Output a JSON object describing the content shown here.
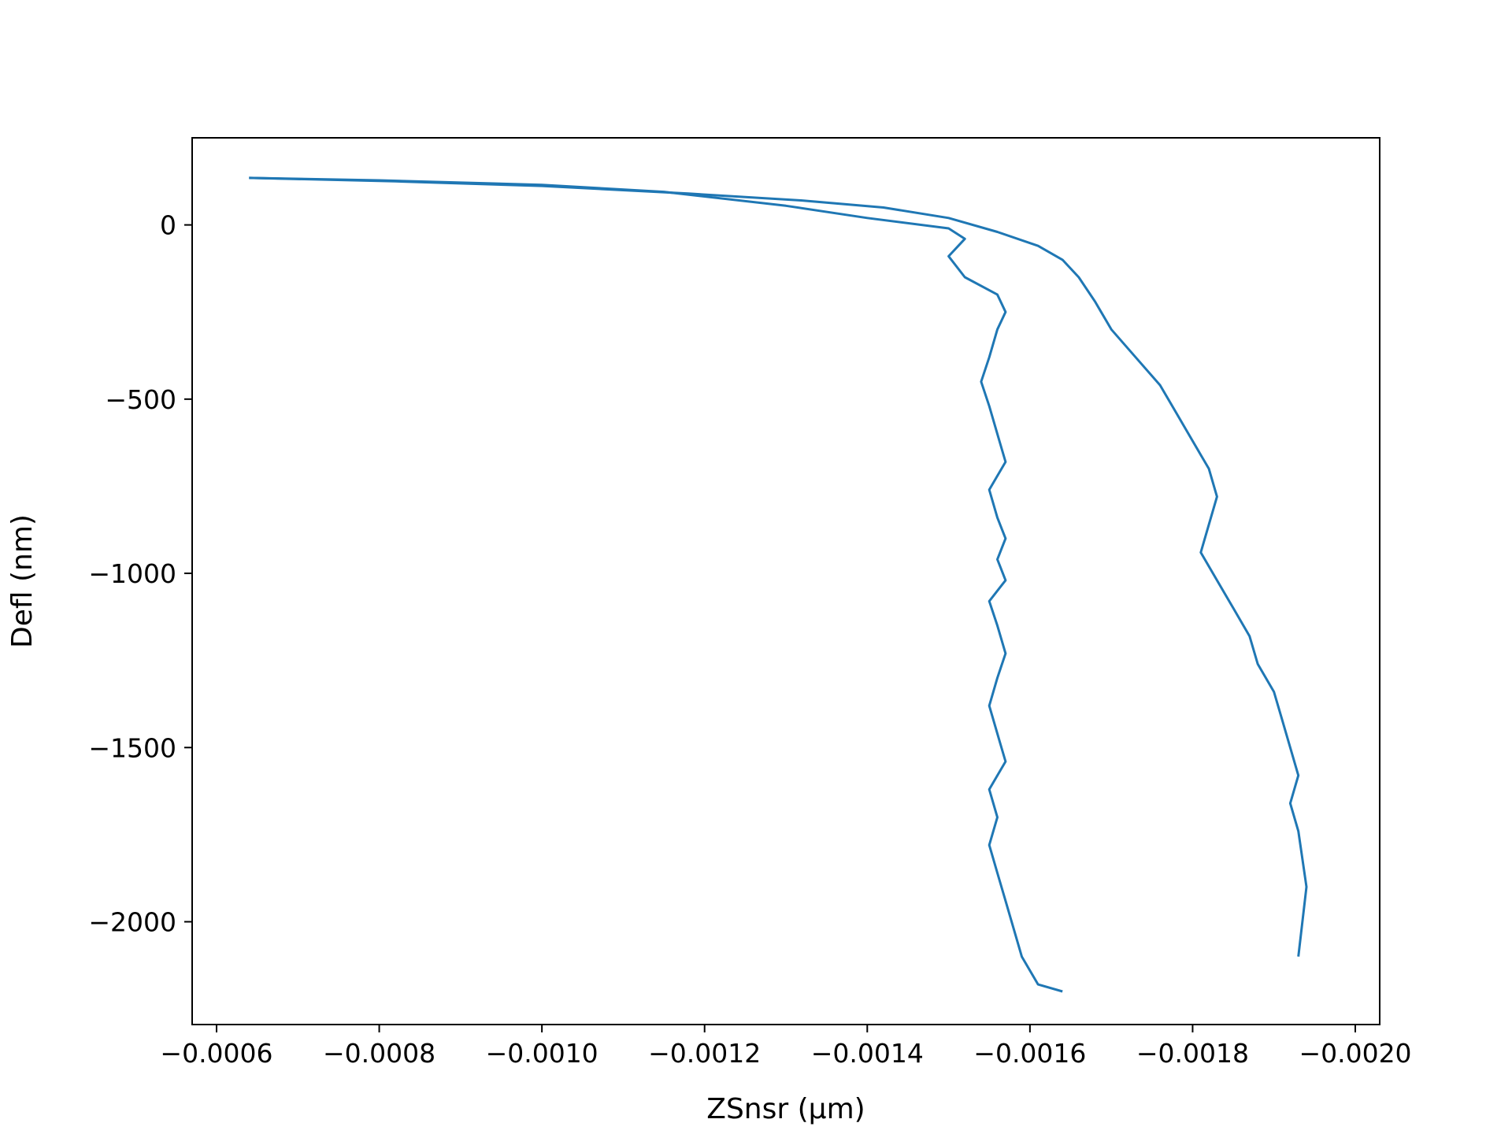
{
  "chart_data": {
    "type": "line",
    "title": "",
    "xlabel": "ZSnsr (μm)",
    "ylabel": "Defl (nm)",
    "xlim": [
      -0.00057,
      -0.00203
    ],
    "ylim": [
      -2295,
      250
    ],
    "x_ticks": [
      -0.0006,
      -0.0008,
      -0.001,
      -0.0012,
      -0.0014,
      -0.0016,
      -0.0018,
      -0.002
    ],
    "x_tick_labels": [
      "−0.0006",
      "−0.0008",
      "−0.0010",
      "−0.0012",
      "−0.0014",
      "−0.0016",
      "−0.0018",
      "−0.0020"
    ],
    "y_ticks": [
      0,
      -500,
      -1000,
      -1500,
      -2000
    ],
    "y_tick_labels": [
      "0",
      "−500",
      "−1000",
      "−1500",
      "−2000"
    ],
    "grid": false,
    "legend": "none",
    "line_color": "#1f77b4",
    "series": [
      {
        "x": [
          -0.00064,
          -0.0008,
          -0.001,
          -0.00115,
          -0.0013,
          -0.0014,
          -0.0015,
          -0.00152,
          -0.0015,
          -0.00152,
          -0.00156,
          -0.00157,
          -0.00156,
          -0.00155,
          -0.00154,
          -0.00155,
          -0.00156,
          -0.00157,
          -0.00155,
          -0.00156,
          -0.00157,
          -0.00156,
          -0.00157,
          -0.00155,
          -0.00156,
          -0.00157,
          -0.00156,
          -0.00155,
          -0.00156,
          -0.00157,
          -0.00155,
          -0.00156,
          -0.00155,
          -0.00156,
          -0.00157,
          -0.00158,
          -0.00159,
          -0.00161,
          -0.00164
        ],
        "y": [
          135,
          128,
          115,
          95,
          55,
          20,
          -10,
          -40,
          -90,
          -150,
          -200,
          -250,
          -300,
          -380,
          -450,
          -520,
          -600,
          -680,
          -760,
          -840,
          -900,
          -960,
          -1020,
          -1080,
          -1150,
          -1230,
          -1300,
          -1380,
          -1460,
          -1540,
          -1620,
          -1700,
          -1780,
          -1860,
          -1940,
          -2020,
          -2100,
          -2180,
          -2200
        ]
      },
      {
        "x": [
          -0.00064,
          -0.00082,
          -0.001,
          -0.00118,
          -0.00132,
          -0.00142,
          -0.0015,
          -0.00156,
          -0.00161,
          -0.00164,
          -0.00166,
          -0.00168,
          -0.0017,
          -0.00173,
          -0.00176,
          -0.00178,
          -0.0018,
          -0.00182,
          -0.00183,
          -0.00182,
          -0.00181,
          -0.00183,
          -0.00185,
          -0.00187,
          -0.00188,
          -0.0019,
          -0.00191,
          -0.00192,
          -0.00193,
          -0.00192,
          -0.00193,
          -0.00194,
          -0.00193
        ],
        "y": [
          135,
          125,
          112,
          90,
          70,
          50,
          20,
          -20,
          -60,
          -100,
          -150,
          -220,
          -300,
          -380,
          -460,
          -540,
          -620,
          -700,
          -780,
          -860,
          -940,
          -1020,
          -1100,
          -1180,
          -1260,
          -1340,
          -1420,
          -1500,
          -1580,
          -1660,
          -1740,
          -1900,
          -2100
        ]
      }
    ]
  }
}
